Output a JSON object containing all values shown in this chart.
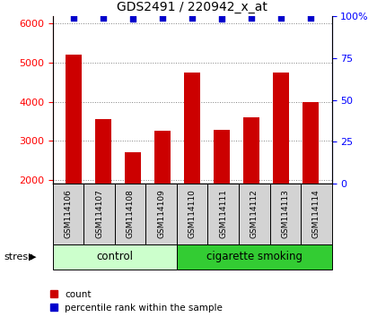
{
  "title": "GDS2491 / 220942_x_at",
  "samples": [
    "GSM114106",
    "GSM114107",
    "GSM114108",
    "GSM114109",
    "GSM114110",
    "GSM114111",
    "GSM114112",
    "GSM114113",
    "GSM114114"
  ],
  "counts": [
    5200,
    3550,
    2720,
    3270,
    4750,
    3280,
    3600,
    4750,
    4000
  ],
  "percentiles": [
    99,
    99,
    98,
    99,
    99,
    98,
    99,
    99,
    99
  ],
  "ylim_left": [
    1900,
    6200
  ],
  "ylim_right": [
    0,
    100
  ],
  "yticks_left": [
    2000,
    3000,
    4000,
    5000,
    6000
  ],
  "yticks_right": [
    0,
    25,
    50,
    75,
    100
  ],
  "bar_color": "#cc0000",
  "dot_color": "#0000cc",
  "control_label": "control",
  "smoking_label": "cigarette smoking",
  "group_label": "stress",
  "control_bg": "#ccffcc",
  "smoking_bg": "#33cc33",
  "tick_bg": "#d3d3d3",
  "legend_count_label": "count",
  "legend_pct_label": "percentile rank within the sample",
  "bar_bottom": 1900,
  "figsize": [
    4.2,
    3.54
  ],
  "dpi": 100
}
